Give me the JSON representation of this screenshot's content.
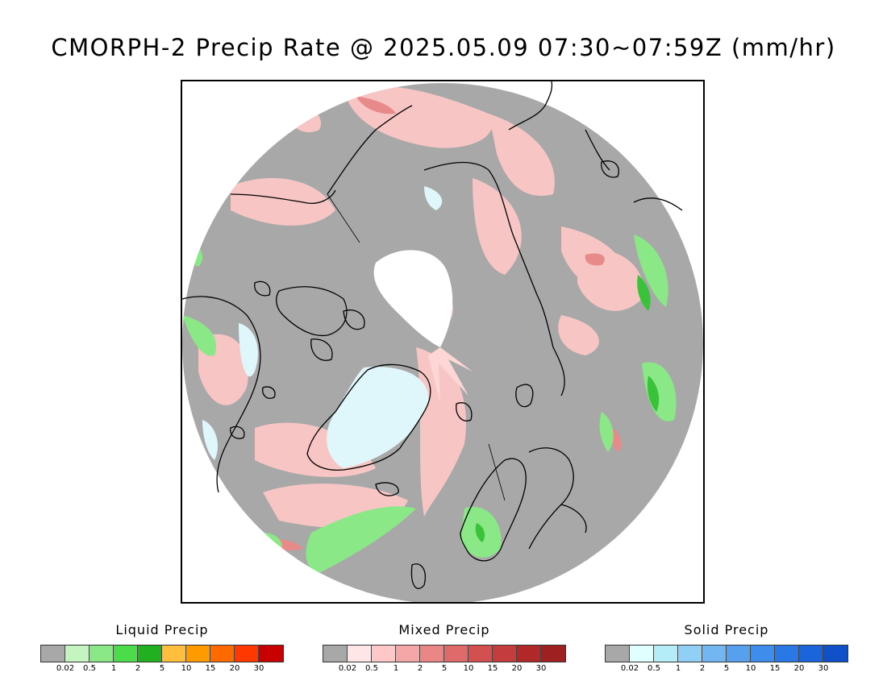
{
  "title": "CMORPH-2 Precip Rate @ 2025.05.09 07:30~07:59Z (mm/hr)",
  "map": {
    "projection": "polar-stereographic-north",
    "background_no_precip": "#a8a8a8",
    "no_data_color": "#ffffff",
    "coastline_color": "#000000"
  },
  "legends": [
    {
      "id": "liquid",
      "title": "Liquid Precip",
      "colors": [
        "#a8a8a8",
        "#c4f5c0",
        "#8ae886",
        "#4bdb4b",
        "#20b020",
        "#ffbe3c",
        "#ff9b00",
        "#ff6a00",
        "#ff3800",
        "#c80000"
      ],
      "ticks": [
        "0.02",
        "0.5",
        "1",
        "2",
        "5",
        "10",
        "15",
        "20",
        "30"
      ]
    },
    {
      "id": "mixed",
      "title": "Mixed Precip",
      "colors": [
        "#a8a8a8",
        "#ffe6e6",
        "#ffc8c8",
        "#f5a6a6",
        "#ea8686",
        "#de6a6a",
        "#d45050",
        "#c43c3c",
        "#b02828",
        "#9e2020"
      ],
      "ticks": [
        "0.02",
        "0.5",
        "1",
        "2",
        "5",
        "10",
        "15",
        "20",
        "30"
      ]
    },
    {
      "id": "solid",
      "title": "Solid Precip",
      "colors": [
        "#a8a8a8",
        "#e0ffff",
        "#b4ecf8",
        "#90cff6",
        "#72b6f2",
        "#56a0ee",
        "#3e8ceb",
        "#2a78e6",
        "#1a64dc",
        "#1050c8"
      ],
      "ticks": [
        "0.02",
        "0.5",
        "1",
        "2",
        "5",
        "10",
        "15",
        "20",
        "30"
      ]
    }
  ]
}
